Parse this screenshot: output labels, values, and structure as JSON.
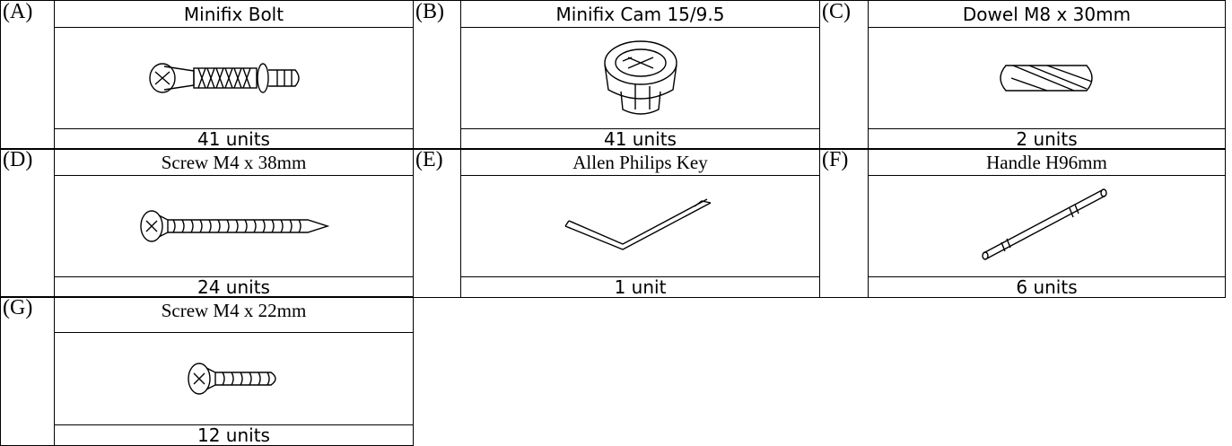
{
  "parts": [
    {
      "letter": "(A)",
      "name": "Minifix Bolt",
      "count": "41 units"
    },
    {
      "letter": "(B)",
      "name": "Minifix Cam 15/9.5",
      "count": "41 units"
    },
    {
      "letter": "(C)",
      "name": "Dowel M8 x 30mm",
      "count": "2 units"
    },
    {
      "letter": "(D)",
      "name": "Screw M4 x 38mm",
      "count": "24 units"
    },
    {
      "letter": "(E)",
      "name": "Allen Philips Key",
      "count": "1 unit"
    },
    {
      "letter": "(F)",
      "name": "Handle H96mm",
      "count": "6 units"
    },
    {
      "letter": "(G)",
      "name": "Screw M4 x 22mm",
      "count": "12 units"
    }
  ]
}
